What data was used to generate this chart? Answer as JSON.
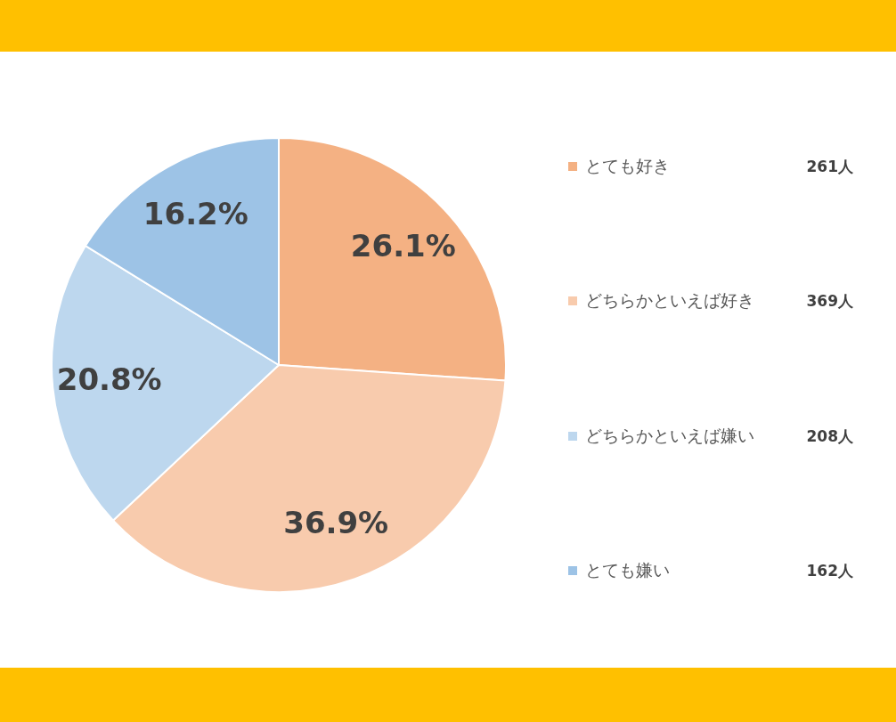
{
  "chart_data": {
    "type": "pie",
    "categories": [
      "とても好き",
      "どちらかといえば好き",
      "どちらかといえば嫌い",
      "とても嫌い"
    ],
    "values": [
      26.1,
      36.9,
      20.8,
      16.2
    ],
    "colors": [
      "#f4b183",
      "#f8cbad",
      "#bdd7ee",
      "#9dc3e6"
    ],
    "value_labels": [
      "26.1%",
      "36.9%",
      "20.8%",
      "16.2%"
    ],
    "annotations": [
      "261人",
      "369人",
      "208人",
      "162人"
    ],
    "legend": "right"
  }
}
